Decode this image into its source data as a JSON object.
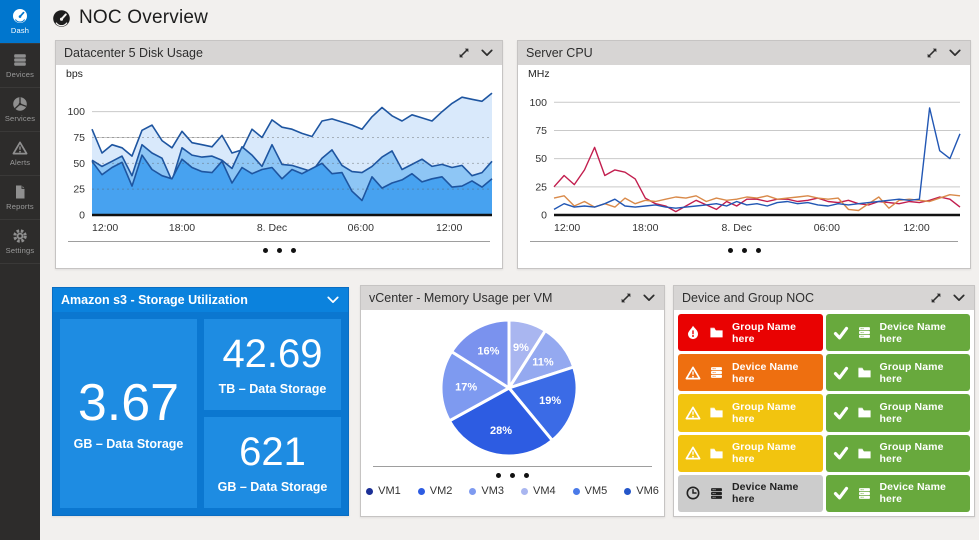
{
  "app": {
    "title": "NOC Overview"
  },
  "sidebar": {
    "items": [
      {
        "name": "dash",
        "label": "Dash",
        "icon": "gauge-icon",
        "active": true
      },
      {
        "name": "devices",
        "label": "Devices",
        "icon": "servers-icon",
        "active": false
      },
      {
        "name": "services",
        "label": "Services",
        "icon": "segments-icon",
        "active": false
      },
      {
        "name": "alerts",
        "label": "Alerts",
        "icon": "warning-icon",
        "active": false
      },
      {
        "name": "reports",
        "label": "Reports",
        "icon": "document-icon",
        "active": false
      },
      {
        "name": "settings",
        "label": "Settings",
        "icon": "gear-icon",
        "active": false
      }
    ]
  },
  "panels": {
    "disk": {
      "title": "Datacenter 5 Disk Usage"
    },
    "cpu": {
      "title": "Server CPU"
    },
    "s3": {
      "title": "Amazon s3 - Storage Utilization",
      "tiles": [
        {
          "value": "3.67",
          "label": "GB – Data Storage"
        },
        {
          "value": "42.69",
          "label": "TB – Data Storage"
        },
        {
          "value": "621",
          "label": "GB – Data Storage"
        }
      ]
    },
    "vcenter": {
      "title": "vCenter - Memory Usage per VM"
    },
    "noc": {
      "title": "Device and Group NOC",
      "tiles_left": [
        {
          "status": "critical",
          "status_icon": "flame-icon",
          "kind_icon": "folder-icon",
          "label": "Group Name here",
          "bg": "#e90202",
          "fg": "#ffffff"
        },
        {
          "status": "major",
          "status_icon": "warning-icon",
          "kind_icon": "device-icon",
          "label": "Device Name here",
          "bg": "#ee6f10",
          "fg": "#ffffff"
        },
        {
          "status": "warning",
          "status_icon": "warning-icon",
          "kind_icon": "folder-icon",
          "label": "Group Name here",
          "bg": "#f2c40f",
          "fg": "#ffffff"
        },
        {
          "status": "warning",
          "status_icon": "warning-icon",
          "kind_icon": "folder-icon",
          "label": "Group Name here",
          "bg": "#f2c40f",
          "fg": "#ffffff"
        },
        {
          "status": "pending",
          "status_icon": "clock-icon",
          "kind_icon": "device-icon",
          "label": "Device Name here",
          "bg": "#cccccc",
          "fg": "#222222"
        }
      ],
      "tiles_right": [
        {
          "status": "ok",
          "status_icon": "check-icon",
          "kind_icon": "device-icon",
          "label": "Device Name here",
          "bg": "#68a93d",
          "fg": "#ffffff"
        },
        {
          "status": "ok",
          "status_icon": "check-icon",
          "kind_icon": "folder-icon",
          "label": "Group Name here",
          "bg": "#68a93d",
          "fg": "#ffffff"
        },
        {
          "status": "ok",
          "status_icon": "check-icon",
          "kind_icon": "folder-icon",
          "label": "Group Name here",
          "bg": "#68a93d",
          "fg": "#ffffff"
        },
        {
          "status": "ok",
          "status_icon": "check-icon",
          "kind_icon": "folder-icon",
          "label": "Group Name here",
          "bg": "#68a93d",
          "fg": "#ffffff"
        },
        {
          "status": "ok",
          "status_icon": "check-icon",
          "kind_icon": "device-icon",
          "label": "Device Name here",
          "bg": "#68a93d",
          "fg": "#ffffff"
        }
      ]
    }
  },
  "colors": {
    "accent_blue": "#0076ce",
    "panel_header": "#d7d5d4",
    "sidebar_bg": "#2d2c2b",
    "s3_tile": "#1e8ce2",
    "green": "#68a93d",
    "red": "#e90202",
    "orange": "#ee6f10",
    "yellow": "#f2c40f"
  },
  "chart_data": [
    {
      "id": "disk",
      "type": "area",
      "title": "Datacenter 5 Disk Usage",
      "ylabel": "bps",
      "ylim": [
        0,
        120
      ],
      "yticks": [
        0,
        25,
        50,
        75,
        100
      ],
      "grid": true,
      "xticklabels": [
        "12:00",
        "18:00",
        "8. Dec",
        "06:00",
        "12:00"
      ],
      "xtickpos": [
        0,
        0.225,
        0.45,
        0.672,
        0.893
      ],
      "series": [
        {
          "name": "disk-total",
          "color": "#1e55a0",
          "fill": "#d9e9fb",
          "values": [
            83,
            60,
            68,
            65,
            57,
            82,
            87,
            72,
            65,
            81,
            70,
            68,
            66,
            77,
            60,
            63,
            83,
            75,
            92,
            85,
            83,
            79,
            76,
            91,
            93,
            90,
            87,
            83,
            95,
            104,
            96,
            91,
            97,
            94,
            91,
            100,
            108,
            114,
            112,
            110,
            118
          ]
        },
        {
          "name": "disk-mid",
          "color": "#1e55a0",
          "fill": "#8ec6f5",
          "values": [
            53,
            47,
            52,
            57,
            38,
            68,
            60,
            55,
            33,
            65,
            58,
            56,
            57,
            53,
            45,
            66,
            58,
            47,
            68,
            49,
            48,
            45,
            42,
            55,
            63,
            48,
            42,
            41,
            47,
            56,
            62,
            44,
            49,
            54,
            47,
            49,
            46,
            48,
            38,
            41,
            52
          ]
        },
        {
          "name": "disk-low",
          "color": "#1e55a0",
          "fill": "#47a2f0",
          "values": [
            52,
            39,
            46,
            51,
            28,
            58,
            44,
            38,
            35,
            54,
            46,
            42,
            41,
            52,
            31,
            46,
            40,
            44,
            46,
            35,
            44,
            40,
            45,
            50,
            40,
            41,
            23,
            14,
            37,
            26,
            31,
            34,
            40,
            32,
            35,
            37,
            27,
            28,
            33,
            27,
            35
          ]
        }
      ]
    },
    {
      "id": "cpu",
      "type": "line",
      "title": "Server CPU",
      "ylabel": "MHz",
      "ylim": [
        0,
        110
      ],
      "yticks": [
        0,
        25,
        50,
        75,
        100
      ],
      "grid": true,
      "xticklabels": [
        "12:00",
        "18:00",
        "8. Dec",
        "06:00",
        "12:00"
      ],
      "xtickpos": [
        0,
        0.225,
        0.45,
        0.672,
        0.893
      ],
      "series": [
        {
          "name": "server-a",
          "color": "#c21e4e",
          "values": [
            25,
            35,
            27,
            40,
            60,
            35,
            40,
            38,
            32,
            15,
            10,
            8,
            3,
            8,
            13,
            9,
            5,
            12,
            8,
            14,
            14,
            12,
            14,
            14,
            12,
            13,
            15,
            12,
            11,
            13,
            10,
            9,
            12,
            11,
            10,
            12,
            11,
            13,
            16,
            14,
            7
          ]
        },
        {
          "name": "server-b",
          "color": "#d98a4a",
          "values": [
            15,
            17,
            8,
            12,
            7,
            10,
            7,
            15,
            10,
            13,
            12,
            14,
            16,
            15,
            17,
            12,
            15,
            13,
            14,
            16,
            15,
            17,
            14,
            15,
            16,
            17,
            15,
            14,
            15,
            5,
            4,
            10,
            16,
            6,
            13,
            14,
            13,
            12,
            15,
            18,
            17
          ]
        },
        {
          "name": "server-c",
          "color": "#2257b4",
          "values": [
            5,
            10,
            7,
            8,
            7,
            10,
            14,
            8,
            7,
            8,
            9,
            7,
            6,
            7,
            8,
            9,
            10,
            8,
            12,
            9,
            10,
            8,
            11,
            12,
            10,
            11,
            9,
            8,
            10,
            9,
            10,
            11,
            12,
            13,
            14,
            13,
            14,
            95,
            57,
            50,
            72
          ]
        }
      ]
    },
    {
      "id": "vm",
      "type": "pie",
      "title": "vCenter - Memory Usage per VM",
      "slices": [
        {
          "label": "9%",
          "value": 9,
          "color": "#a9b6f0"
        },
        {
          "label": "11%",
          "value": 11,
          "color": "#94a9f0"
        },
        {
          "label": "19%",
          "value": 19,
          "color": "#3b6be6"
        },
        {
          "label": "28%",
          "value": 28,
          "color": "#2d5ce2"
        },
        {
          "label": "17%",
          "value": 17,
          "color": "#7e9af0"
        },
        {
          "label": "16%",
          "value": 16,
          "color": "#7a92ee"
        }
      ],
      "legend": [
        {
          "label": "VM1",
          "color": "#1b2f96"
        },
        {
          "label": "VM2",
          "color": "#2d5ce2"
        },
        {
          "label": "VM3",
          "color": "#7e9af0"
        },
        {
          "label": "VM4",
          "color": "#a9b6f0"
        },
        {
          "label": "VM5",
          "color": "#4a7ae8"
        },
        {
          "label": "VM6",
          "color": "#2456c9"
        }
      ],
      "legend_position": "bottom"
    }
  ]
}
